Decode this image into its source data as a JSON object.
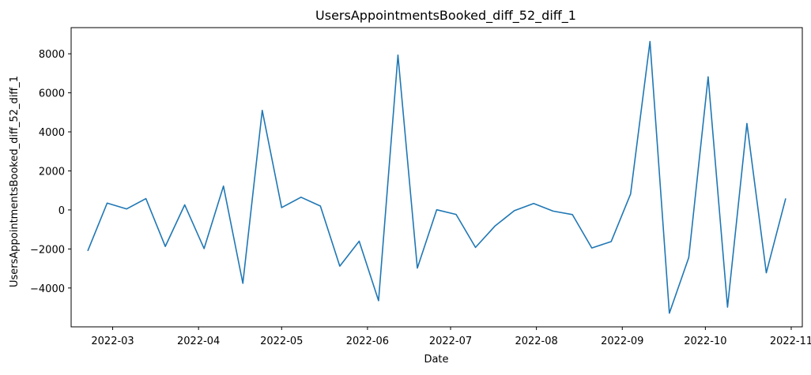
{
  "chart_data": {
    "type": "line",
    "title": "UsersAppointmentsBooked_diff_52_diff_1",
    "xlabel": "Date",
    "ylabel": "UsersAppointmentsBooked_diff_52_diff_1",
    "x_tick_labels": [
      "2022-03",
      "2022-04",
      "2022-05",
      "2022-06",
      "2022-07",
      "2022-08",
      "2022-09",
      "2022-10",
      "2022-11"
    ],
    "y_ticks": [
      -4000,
      -2000,
      0,
      2000,
      4000,
      6000,
      8000
    ],
    "xlim": [
      "2022-02-14",
      "2022-11-05"
    ],
    "ylim": [
      -5990,
      9340
    ],
    "grid": false,
    "line_color": "#1f77b4",
    "series": [
      {
        "x": [
          "2022-02-20",
          "2022-02-27",
          "2022-03-06",
          "2022-03-13",
          "2022-03-20",
          "2022-03-27",
          "2022-04-03",
          "2022-04-10",
          "2022-04-17",
          "2022-04-24",
          "2022-05-01",
          "2022-05-08",
          "2022-05-15",
          "2022-05-22",
          "2022-05-29",
          "2022-06-05",
          "2022-06-12",
          "2022-06-19",
          "2022-06-26",
          "2022-07-03",
          "2022-07-10",
          "2022-07-17",
          "2022-07-24",
          "2022-07-31",
          "2022-08-07",
          "2022-08-14",
          "2022-08-21",
          "2022-08-28",
          "2022-09-04",
          "2022-09-11",
          "2022-09-18",
          "2022-09-25",
          "2022-10-02",
          "2022-10-09",
          "2022-10-16",
          "2022-10-23",
          "2022-10-30"
        ],
        "values": [
          -2100,
          350,
          50,
          580,
          -1870,
          260,
          -1980,
          1220,
          -3760,
          5100,
          120,
          650,
          200,
          -2880,
          -1600,
          -4650,
          7930,
          -2980,
          10,
          -230,
          -1920,
          -830,
          -40,
          330,
          -60,
          -240,
          -1950,
          -1620,
          820,
          8630,
          -5290,
          -2440,
          6820,
          -4980,
          4430,
          -3220,
          590
        ]
      }
    ]
  }
}
